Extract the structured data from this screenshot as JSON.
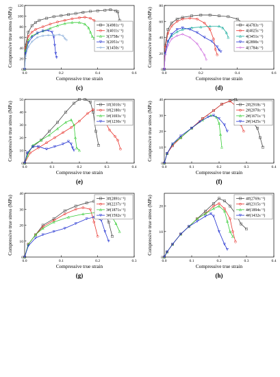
{
  "chart_data": [
    {
      "panel": "(c)",
      "type": "line",
      "xlabel": "Compressive true strain",
      "ylabel": "Compressive true stress (MPa)",
      "xlim": [
        0,
        0.6
      ],
      "ylim": [
        0,
        120
      ],
      "xticks": [
        "0.0",
        "0.2",
        "0.4",
        "0.6"
      ],
      "yticks": [
        "0",
        "20",
        "40",
        "60",
        "80",
        "100",
        "120"
      ],
      "legend_position": "right",
      "series": [
        {
          "name": "3(4981s⁻¹)",
          "color": "#444444",
          "marker": "square",
          "x": [
            0,
            0.005,
            0.02,
            0.04,
            0.06,
            0.08,
            0.12,
            0.16,
            0.2,
            0.24,
            0.28,
            0.32,
            0.36,
            0.4,
            0.44,
            0.47,
            0.5,
            0.51,
            0.52
          ],
          "y": [
            0,
            45,
            70,
            82,
            88,
            92,
            96,
            99,
            101,
            103,
            105,
            107,
            109,
            110,
            111,
            112,
            110,
            108,
            92
          ]
        },
        {
          "name": "3(4011s⁻¹)",
          "color": "#e8312a",
          "marker": "circle",
          "x": [
            0,
            0.005,
            0.02,
            0.04,
            0.06,
            0.1,
            0.14,
            0.18,
            0.22,
            0.26,
            0.3,
            0.33,
            0.36,
            0.38,
            0.4,
            0.42,
            0.43
          ],
          "y": [
            0,
            40,
            62,
            70,
            75,
            80,
            85,
            89,
            92,
            95,
            97,
            98,
            96,
            92,
            88,
            86,
            80
          ]
        },
        {
          "name": "3(3758s⁻¹)",
          "color": "#33cc33",
          "marker": "triangle",
          "x": [
            0,
            0.005,
            0.02,
            0.04,
            0.07,
            0.1,
            0.14,
            0.18,
            0.22,
            0.26,
            0.3,
            0.33,
            0.35,
            0.36,
            0.37,
            0.38
          ],
          "y": [
            0,
            35,
            55,
            63,
            68,
            72,
            77,
            82,
            86,
            88,
            88,
            85,
            78,
            70,
            62,
            58
          ]
        },
        {
          "name": "3(2051s⁻¹)",
          "color": "#1f2fd1",
          "marker": "triangle-down",
          "x": [
            0,
            0.005,
            0.02,
            0.04,
            0.07,
            0.1,
            0.13,
            0.15,
            0.16,
            0.165,
            0.17,
            0.175
          ],
          "y": [
            0,
            30,
            50,
            60,
            68,
            72,
            73,
            70,
            60,
            45,
            30,
            22
          ]
        },
        {
          "name": "3(1450s⁻¹)",
          "color": "#7fa6d6",
          "marker": "diamond",
          "x": [
            0,
            0.005,
            0.02,
            0.04,
            0.07,
            0.1,
            0.13,
            0.16,
            0.19,
            0.21,
            0.22,
            0.23
          ],
          "y": [
            0,
            25,
            42,
            52,
            60,
            63,
            64,
            64,
            65,
            63,
            58,
            55
          ]
        }
      ]
    },
    {
      "panel": "(d)",
      "type": "line",
      "xlabel": "Compressive true strain",
      "ylabel": "Compressive true stress (MPa)",
      "xlim": [
        0,
        0.6
      ],
      "ylim": [
        0,
        80
      ],
      "xticks": [
        "0.0",
        "0.2",
        "0.4",
        "0.6"
      ],
      "yticks": [
        "0",
        "20",
        "40",
        "60",
        "80"
      ],
      "legend_position": "right",
      "series": [
        {
          "name": "4(4783s⁻¹)",
          "color": "#444444",
          "marker": "square",
          "x": [
            0,
            0.005,
            0.02,
            0.04,
            0.07,
            0.1,
            0.15,
            0.2,
            0.25,
            0.3,
            0.35,
            0.4,
            0.43,
            0.45
          ],
          "y": [
            0,
            30,
            50,
            58,
            63,
            65,
            67,
            68,
            68,
            67,
            66,
            63,
            58,
            48
          ]
        },
        {
          "name": "4(4025s⁻¹)",
          "color": "#e8312a",
          "marker": "circle",
          "x": [
            0,
            0.005,
            0.02,
            0.04,
            0.07,
            0.1,
            0.14,
            0.18,
            0.22,
            0.25,
            0.27,
            0.28,
            0.29
          ],
          "y": [
            0,
            28,
            45,
            54,
            60,
            63,
            64,
            63,
            58,
            50,
            38,
            25,
            18
          ]
        },
        {
          "name": "4(3451s⁻¹)",
          "color": "#11a999",
          "marker": "triangle",
          "x": [
            0,
            0.005,
            0.02,
            0.04,
            0.07,
            0.1,
            0.15,
            0.2,
            0.25,
            0.3,
            0.32,
            0.34,
            0.35
          ],
          "y": [
            0,
            20,
            35,
            42,
            47,
            50,
            52,
            53,
            54,
            54,
            52,
            46,
            40
          ]
        },
        {
          "name": "4(2890s⁻¹)",
          "color": "#1f2fd1",
          "marker": "triangle-down",
          "x": [
            0,
            0.005,
            0.02,
            0.04,
            0.07,
            0.1,
            0.14,
            0.18,
            0.22,
            0.26,
            0.29,
            0.3,
            0.31
          ],
          "y": [
            0,
            20,
            35,
            44,
            50,
            52,
            50,
            46,
            40,
            35,
            28,
            24,
            22
          ]
        },
        {
          "name": "4(1784s⁻¹)",
          "color": "#cc66dd",
          "marker": "diamond",
          "x": [
            0,
            0.005,
            0.02,
            0.04,
            0.07,
            0.1,
            0.14,
            0.18,
            0.2,
            0.22,
            0.23
          ],
          "y": [
            0,
            18,
            30,
            38,
            42,
            44,
            40,
            32,
            25,
            18,
            12
          ]
        }
      ]
    },
    {
      "panel": "(e)",
      "type": "line",
      "xlabel": "Compressive true strain",
      "ylabel": "Compressive true stress (MPa)",
      "xlim": [
        0,
        0.4
      ],
      "ylim": [
        0,
        50
      ],
      "xticks": [
        "0.0",
        "0.1",
        "0.2",
        "0.3",
        "0.4"
      ],
      "yticks": [
        "0",
        "10",
        "20",
        "30",
        "40",
        "50"
      ],
      "legend_position": "top-right",
      "series": [
        {
          "name": "1#(3010s⁻¹)",
          "color": "#444444",
          "marker": "square",
          "x": [
            0,
            0.01,
            0.03,
            0.06,
            0.09,
            0.12,
            0.15,
            0.18,
            0.2,
            0.22,
            0.24,
            0.25,
            0.26,
            0.27
          ],
          "y": [
            0,
            8,
            13,
            18,
            25,
            32,
            40,
            47,
            50,
            50,
            48,
            40,
            25,
            14
          ]
        },
        {
          "name": "1#(2180s⁻¹)",
          "color": "#e8312a",
          "marker": "circle",
          "x": [
            0,
            0.02,
            0.05,
            0.08,
            0.11,
            0.14,
            0.17,
            0.2,
            0.23,
            0.25,
            0.27,
            0.29,
            0.31,
            0.33,
            0.34,
            0.35
          ],
          "y": [
            0,
            8,
            12,
            16,
            20,
            24,
            28,
            33,
            39,
            42,
            40,
            34,
            26,
            21,
            18,
            11
          ]
        },
        {
          "name": "1#(1693s⁻¹)",
          "color": "#33cc33",
          "marker": "triangle",
          "x": [
            0,
            0.01,
            0.03,
            0.06,
            0.09,
            0.12,
            0.15,
            0.17,
            0.18,
            0.185,
            0.19,
            0.2
          ],
          "y": [
            0,
            6,
            14,
            18,
            22,
            27,
            32,
            34,
            30,
            20,
            12,
            10
          ]
        },
        {
          "name": "1#(1230s⁻¹)",
          "color": "#1f2fd1",
          "marker": "triangle-down",
          "x": [
            0,
            0.01,
            0.03,
            0.05,
            0.08,
            0.11,
            0.14,
            0.16,
            0.17,
            0.175,
            0.18
          ],
          "y": [
            0,
            8,
            13,
            13,
            11,
            13,
            15,
            17,
            15,
            12,
            10
          ]
        }
      ]
    },
    {
      "panel": "(f)",
      "type": "line",
      "xlabel": "Compressive true strain",
      "ylabel": "Compressive true stress (MPa)",
      "xlim": [
        0,
        0.4
      ],
      "ylim": [
        0,
        40
      ],
      "xticks": [
        "0.0",
        "0.1",
        "0.2",
        "0.3",
        "0.4"
      ],
      "yticks": [
        "0",
        "10",
        "20",
        "30",
        "40"
      ],
      "legend_position": "top-right",
      "series": [
        {
          "name": "2#(2918s⁻¹)",
          "color": "#444444",
          "marker": "square",
          "x": [
            0,
            0.01,
            0.03,
            0.06,
            0.1,
            0.14,
            0.18,
            0.21,
            0.24,
            0.26,
            0.28,
            0.3,
            0.32,
            0.34,
            0.35,
            0.36
          ],
          "y": [
            0,
            6,
            11,
            16,
            22,
            28,
            33,
            37,
            39,
            40,
            38,
            33,
            26,
            22,
            16,
            10
          ]
        },
        {
          "name": "2#(2070s⁻¹)",
          "color": "#e8312a",
          "marker": "circle",
          "x": [
            0,
            0.01,
            0.03,
            0.06,
            0.1,
            0.14,
            0.18,
            0.21,
            0.24,
            0.26,
            0.27,
            0.28,
            0.29
          ],
          "y": [
            0,
            6,
            11,
            16,
            22,
            28,
            33,
            37,
            39,
            36,
            30,
            24,
            20
          ]
        },
        {
          "name": "2#(1671s⁻¹)",
          "color": "#33cc33",
          "marker": "triangle",
          "x": [
            0,
            0.01,
            0.03,
            0.06,
            0.1,
            0.14,
            0.17,
            0.19,
            0.2,
            0.205,
            0.21
          ],
          "y": [
            0,
            6,
            12,
            16,
            22,
            27,
            30,
            29,
            25,
            18,
            10
          ]
        },
        {
          "name": "2#(1425s⁻¹)",
          "color": "#1f2fd1",
          "marker": "triangle-down",
          "x": [
            0,
            0.01,
            0.03,
            0.06,
            0.1,
            0.13,
            0.16,
            0.18,
            0.2,
            0.22,
            0.23
          ],
          "y": [
            0,
            6,
            12,
            17,
            22,
            26,
            29,
            30,
            28,
            24,
            20
          ]
        }
      ]
    },
    {
      "panel": "(g)",
      "type": "line",
      "xlabel": "Compressive true strain",
      "ylabel": "Compressive true stress (MPa)",
      "xlim": [
        0,
        0.3
      ],
      "ylim": [
        0,
        40
      ],
      "xticks": [
        "0.0",
        "0.1",
        "0.2",
        "0.3"
      ],
      "yticks": [
        "0",
        "10",
        "20",
        "30",
        "40"
      ],
      "legend_position": "top-right",
      "series": [
        {
          "name": "3#(2891s⁻¹)",
          "color": "#444444",
          "marker": "square",
          "x": [
            0,
            0.01,
            0.03,
            0.05,
            0.08,
            0.11,
            0.14,
            0.17,
            0.19,
            0.21,
            0.22,
            0.23,
            0.24
          ],
          "y": [
            0,
            8,
            14,
            20,
            24,
            29,
            32,
            34,
            35,
            34,
            30,
            22,
            13
          ]
        },
        {
          "name": "3#(2237s⁻¹)",
          "color": "#e8312a",
          "marker": "circle",
          "x": [
            0,
            0.01,
            0.03,
            0.05,
            0.08,
            0.11,
            0.14,
            0.16,
            0.18,
            0.19,
            0.2
          ],
          "y": [
            0,
            8,
            14,
            19,
            23,
            27,
            30,
            31,
            30,
            22,
            13
          ]
        },
        {
          "name": "3#(1871s⁻¹)",
          "color": "#33cc33",
          "marker": "triangle",
          "x": [
            0,
            0.01,
            0.03,
            0.05,
            0.08,
            0.12,
            0.16,
            0.2,
            0.22,
            0.24,
            0.25,
            0.26
          ],
          "y": [
            0,
            8,
            14,
            18,
            22,
            25,
            27,
            28,
            28,
            25,
            21,
            16
          ]
        },
        {
          "name": "3#(1592s⁻¹)",
          "color": "#1f2fd1",
          "marker": "triangle-down",
          "x": [
            0,
            0.01,
            0.03,
            0.05,
            0.08,
            0.11,
            0.14,
            0.17,
            0.19,
            0.21,
            0.22,
            0.23
          ],
          "y": [
            0,
            7,
            12,
            14,
            16,
            18,
            21,
            24,
            25,
            23,
            16,
            10
          ]
        }
      ]
    },
    {
      "panel": "(h)",
      "type": "line",
      "xlabel": "Compressive true strain",
      "ylabel": "Compressive true stress (MPa)",
      "xlim": [
        0,
        0.4
      ],
      "ylim": [
        0,
        25
      ],
      "xticks": [
        "0.0",
        "0.1",
        "0.2",
        "0.3",
        "0.4"
      ],
      "yticks": [
        "0",
        "10",
        "20"
      ],
      "legend_position": "top-right",
      "series": [
        {
          "name": "4#(2769s⁻¹)",
          "color": "#444444",
          "marker": "square",
          "x": [
            0,
            0.01,
            0.03,
            0.06,
            0.09,
            0.12,
            0.15,
            0.18,
            0.2,
            0.22,
            0.24,
            0.26,
            0.28,
            0.3
          ],
          "y": [
            0,
            2,
            5,
            9,
            12,
            15,
            18,
            21,
            23,
            22,
            20,
            17,
            13,
            11
          ]
        },
        {
          "name": "4#(2315s⁻¹)",
          "color": "#e8312a",
          "marker": "circle",
          "x": [
            0,
            0.01,
            0.03,
            0.06,
            0.09,
            0.12,
            0.15,
            0.18,
            0.2,
            0.22,
            0.24,
            0.25,
            0.26
          ],
          "y": [
            0,
            2,
            5,
            9,
            12,
            15,
            17,
            20,
            21,
            19,
            15,
            10,
            6
          ]
        },
        {
          "name": "4#(1894s⁻¹)",
          "color": "#33cc33",
          "marker": "triangle",
          "x": [
            0,
            0.01,
            0.03,
            0.06,
            0.09,
            0.12,
            0.15,
            0.18,
            0.2,
            0.22,
            0.23,
            0.24,
            0.25
          ],
          "y": [
            0,
            2,
            5,
            9,
            12,
            15,
            17,
            19,
            20,
            18,
            14,
            10,
            8
          ]
        },
        {
          "name": "4#(1432s⁻¹)",
          "color": "#1f2fd1",
          "marker": "triangle-down",
          "x": [
            0,
            0.01,
            0.03,
            0.06,
            0.09,
            0.12,
            0.15,
            0.17,
            0.18,
            0.2,
            0.22,
            0.23
          ],
          "y": [
            0,
            2,
            5,
            9,
            12,
            14,
            16,
            17,
            16,
            10,
            5,
            3
          ]
        }
      ]
    }
  ]
}
